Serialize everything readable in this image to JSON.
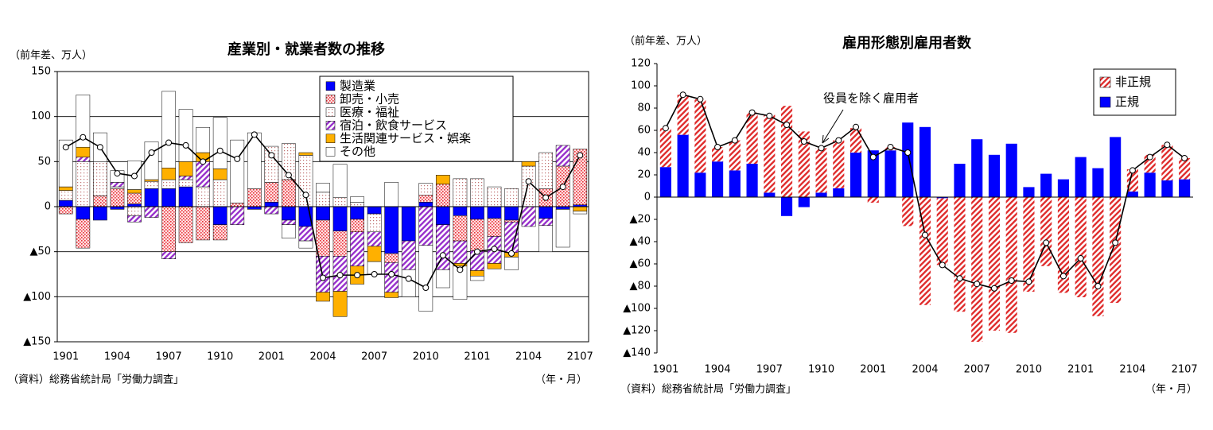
{
  "chart_data": [
    {
      "type": "bar",
      "title": "産業別・就業者数の推移",
      "ylabel": "（前年差、万人）",
      "xlabel": "（年・月）",
      "source": "（資料）総務省統計局「労働力調査」",
      "categories": [
        "1901",
        null,
        null,
        "1904",
        null,
        null,
        "1907",
        null,
        null,
        "1910",
        null,
        null,
        "2001",
        null,
        null,
        "2004",
        null,
        null,
        "2007",
        null,
        null,
        "2010",
        null,
        null,
        "2101",
        null,
        null,
        "2104",
        null,
        null,
        "2107"
      ],
      "ylim": [
        -150,
        150
      ],
      "yticks": [
        {
          "value": -150,
          "label": "▲150"
        },
        {
          "value": -100,
          "label": "▲100"
        },
        {
          "value": -50,
          "label": "▲50"
        },
        0,
        50,
        100,
        150
      ],
      "grid": true,
      "legend": "top-right",
      "series": [
        {
          "name": "製造業",
          "color": "#0000ff",
          "pattern": "solid",
          "values": [
            7,
            -14,
            -15,
            -3,
            3,
            20,
            20,
            22,
            0,
            -20,
            0,
            -3,
            5,
            -15,
            -22,
            -15,
            -27,
            -14,
            -8,
            -52,
            -38,
            5,
            -20,
            -10,
            -14,
            -13,
            -15,
            0,
            -13,
            -3,
            2
          ]
        },
        {
          "name": "卸売・小売",
          "color": "#e8303a",
          "pattern": "dense-dots",
          "values": [
            -8,
            -32,
            12,
            20,
            12,
            0,
            -50,
            -40,
            -37,
            -17,
            4,
            20,
            22,
            30,
            0,
            -40,
            -28,
            -14,
            0,
            -10,
            0,
            8,
            25,
            -28,
            -35,
            -20,
            -2,
            0,
            20,
            45,
            62
          ]
        },
        {
          "name": "医療・福祉",
          "color": "#c07070",
          "pattern": "dots",
          "values": [
            11,
            50,
            38,
            2,
            -10,
            8,
            10,
            8,
            22,
            30,
            0,
            0,
            40,
            40,
            57,
            16,
            10,
            5,
            -20,
            0,
            0,
            13,
            0,
            31,
            31,
            22,
            20,
            45,
            40,
            0,
            0
          ]
        },
        {
          "name": "宿泊・飲食サービス",
          "color": "#9933cc",
          "pattern": "hatch",
          "values": [
            0,
            5,
            0,
            5,
            -7,
            -12,
            -8,
            4,
            28,
            0,
            -20,
            0,
            -8,
            -5,
            -16,
            -40,
            -39,
            -38,
            -16,
            -33,
            -32,
            -43,
            -50,
            -25,
            -22,
            -30,
            -34,
            -22,
            -8,
            23,
            0
          ]
        },
        {
          "name": "生活関連サービス・娯楽",
          "color": "#ffb000",
          "pattern": "solid",
          "values": [
            4,
            11,
            0,
            0,
            4,
            2,
            13,
            16,
            10,
            12,
            0,
            0,
            0,
            0,
            3,
            -10,
            -28,
            -20,
            -17,
            -6,
            0,
            0,
            10,
            -3,
            -6,
            -6,
            -5,
            5,
            0,
            0,
            -5
          ]
        },
        {
          "name": "その他",
          "color": "#ffffff",
          "pattern": "solid",
          "values": [
            52,
            58,
            32,
            13,
            32,
            42,
            85,
            58,
            28,
            57,
            70,
            62,
            0,
            -15,
            -8,
            10,
            37,
            6,
            -14,
            27,
            -30,
            -73,
            -20,
            -37,
            -5,
            0,
            -14,
            0,
            -29,
            -42,
            -3
          ]
        }
      ],
      "line": {
        "color": "#000000",
        "values": [
          66,
          77,
          66,
          37,
          34,
          60,
          71,
          68,
          50,
          62,
          53,
          80,
          57,
          35,
          13,
          -79,
          -76,
          -76,
          -75,
          -75,
          -80,
          -90,
          -54,
          -70,
          -50,
          -47,
          -52,
          28,
          10,
          22,
          57
        ]
      }
    },
    {
      "type": "bar",
      "title": "雇用形態別雇用者数",
      "ylabel": "（前年差、万人）",
      "xlabel": "（年・月）",
      "source": "（資料）総務省統計局「労働力調査」",
      "categories": [
        "1901",
        null,
        null,
        "1904",
        null,
        null,
        "1907",
        null,
        null,
        "1910",
        null,
        null,
        "2001",
        null,
        null,
        "2004",
        null,
        null,
        "2007",
        null,
        null,
        "2010",
        null,
        null,
        "2101",
        null,
        null,
        "2104",
        null,
        null,
        "2107"
      ],
      "ylim": [
        -140,
        120
      ],
      "yticks": [
        {
          "value": -140,
          "label": "▲140"
        },
        {
          "value": -120,
          "label": "▲120"
        },
        {
          "value": -100,
          "label": "▲100"
        },
        {
          "value": -80,
          "label": "▲80"
        },
        {
          "value": -60,
          "label": "▲60"
        },
        {
          "value": -40,
          "label": "▲40"
        },
        {
          "value": -20,
          "label": "▲20"
        },
        0,
        20,
        40,
        60,
        80,
        100,
        120
      ],
      "grid": false,
      "legend": "top-right",
      "series": [
        {
          "name": "正規",
          "color": "#0000ff",
          "pattern": "solid",
          "values": [
            27,
            56,
            22,
            32,
            24,
            30,
            4,
            -17,
            -9,
            4,
            8,
            40,
            42,
            42,
            67,
            63,
            -1,
            30,
            52,
            38,
            48,
            9,
            21,
            16,
            36,
            26,
            54,
            5,
            22,
            15,
            16
          ]
        },
        {
          "name": "非正規",
          "color": "#e03030",
          "pattern": "hatch",
          "values": [
            35,
            36,
            66,
            13,
            27,
            46,
            70,
            82,
            59,
            40,
            43,
            22,
            -5,
            3,
            -26,
            -97,
            -60,
            -103,
            -130,
            -120,
            -122,
            -85,
            -62,
            -86,
            -90,
            -107,
            -95,
            20,
            16,
            32,
            19
          ]
        }
      ],
      "line": {
        "name": "役員を除く雇用者",
        "color": "#000000",
        "values": [
          62,
          92,
          88,
          45,
          51,
          76,
          73,
          65,
          50,
          44,
          51,
          63,
          36,
          45,
          40,
          -34,
          -61,
          -73,
          -78,
          -82,
          -75,
          -76,
          -41,
          -71,
          -55,
          -80,
          -41,
          24,
          36,
          47,
          35
        ]
      }
    }
  ]
}
